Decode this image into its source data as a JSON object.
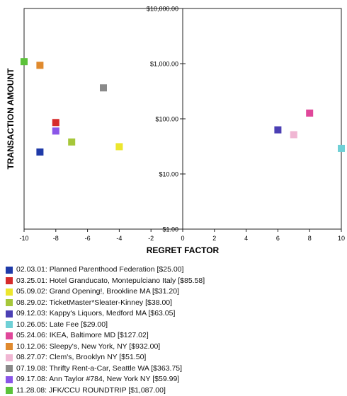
{
  "chart_data": {
    "type": "scatter",
    "title": "",
    "xlabel": "REGRET FACTOR",
    "ylabel": "TRANSACTION AMOUNT",
    "xlim": [
      -10,
      10
    ],
    "ylim": [
      1,
      10000
    ],
    "yscale": "log",
    "x_ticks": [
      "-10",
      "-8",
      "-6",
      "-4",
      "-2",
      "0",
      "2",
      "4",
      "6",
      "8",
      "10"
    ],
    "y_ticks": [
      {
        "value": 10000,
        "label": "$10,000.00"
      },
      {
        "value": 1000,
        "label": "$1,000.00"
      },
      {
        "value": 100,
        "label": "$100.00"
      },
      {
        "value": 10,
        "label": "$10.00"
      },
      {
        "value": 1,
        "label": "$1.00"
      }
    ],
    "grid": false,
    "legend_position": "bottom",
    "points": [
      {
        "label": "02.03.01: Planned Parenthood Federation  [$25.00]",
        "x": -9,
        "y": 25.0,
        "color": "#1f3aa8"
      },
      {
        "label": "03.25.01: Hotel Granducato, Montepulciano Italy  [$85.58]",
        "x": -8,
        "y": 85.58,
        "color": "#d62b2b"
      },
      {
        "label": "05.09.02: Grand Opening!, Brookline MA  [$31.20]",
        "x": -4,
        "y": 31.2,
        "color": "#ece62e"
      },
      {
        "label": "08.29.02: TicketMaster*Sleater-Kinney  [$38.00]",
        "x": -7,
        "y": 38.0,
        "color": "#a6c73a"
      },
      {
        "label": "09.12.03: Kappy's Liquors, Medford MA  [$63.05]",
        "x": 6,
        "y": 63.05,
        "color": "#4b3fb4"
      },
      {
        "label": "10.26.05: Late Fee  [$29.00]",
        "x": 10,
        "y": 29.0,
        "color": "#6fd0d6"
      },
      {
        "label": "05.24.06: IKEA, Baltimore MD  [$127.02]",
        "x": 8,
        "y": 127.02,
        "color": "#e0479a"
      },
      {
        "label": "10.12.06: Sleepy's, New York, NY  [$932.00]",
        "x": -9,
        "y": 932.0,
        "color": "#e08a2e"
      },
      {
        "label": "08.27.07: Clem's, Brooklyn NY  [$51.50]",
        "x": 7,
        "y": 51.5,
        "color": "#f0b6d3"
      },
      {
        "label": "07.19.08: Thrifty Rent-a-Car, Seattle WA  [$363.75]",
        "x": -5,
        "y": 363.75,
        "color": "#8a8a8a"
      },
      {
        "label": "09.17.08: Ann Taylor #784, New York NY  [$59.99]",
        "x": -8,
        "y": 59.99,
        "color": "#8a55e8"
      },
      {
        "label": "11.28.08: JFK/CCU ROUNDTRIP  [$1,087.00]",
        "x": -10,
        "y": 1087.0,
        "color": "#5cc23a"
      }
    ]
  }
}
